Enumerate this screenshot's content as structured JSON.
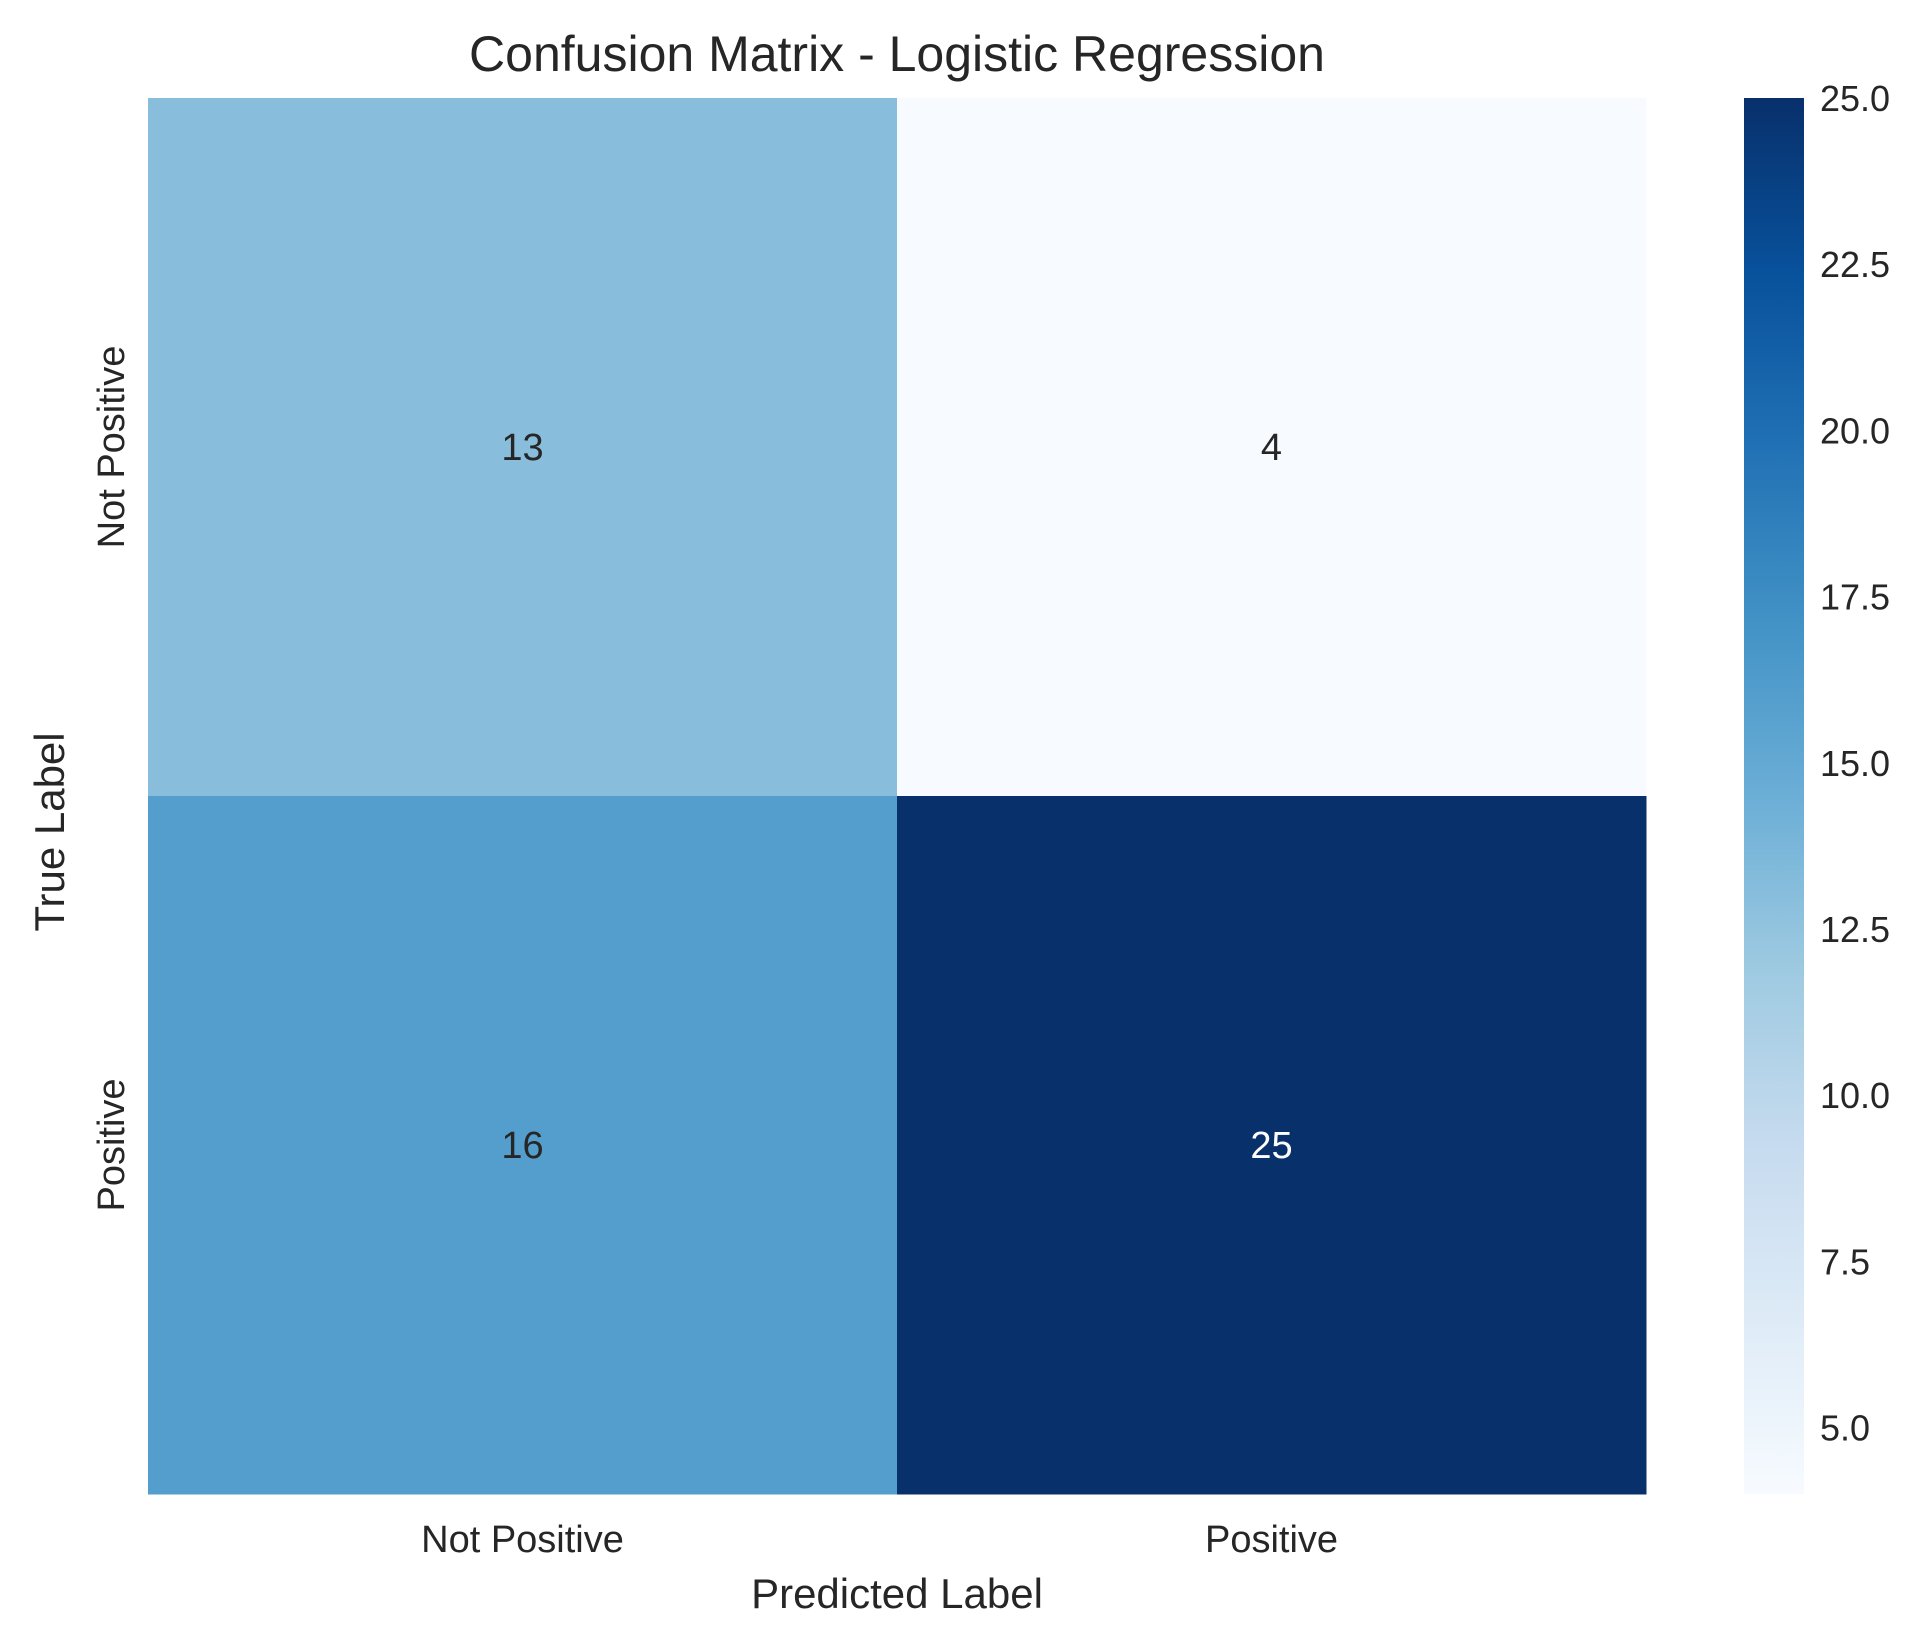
{
  "chart_data": {
    "type": "heatmap",
    "title": "Confusion Matrix - Logistic Regression",
    "xlabel": "Predicted Label",
    "ylabel": "True Label",
    "x_categories": [
      "Not Positive",
      "Positive"
    ],
    "y_categories": [
      "Not Positive",
      "Positive"
    ],
    "values": [
      [
        13,
        4
      ],
      [
        16,
        25
      ]
    ],
    "colormap": "Blues",
    "color_range": [
      4,
      25
    ],
    "colorbar_ticks": [
      "5.0",
      "7.5",
      "10.0",
      "12.5",
      "15.0",
      "17.5",
      "20.0",
      "22.5",
      "25.0"
    ],
    "colorbar_tick_values": [
      5,
      7.5,
      10,
      12.5,
      15,
      17.5,
      20,
      22.5,
      25
    ],
    "grid": false,
    "legend": "colorbar-right"
  }
}
